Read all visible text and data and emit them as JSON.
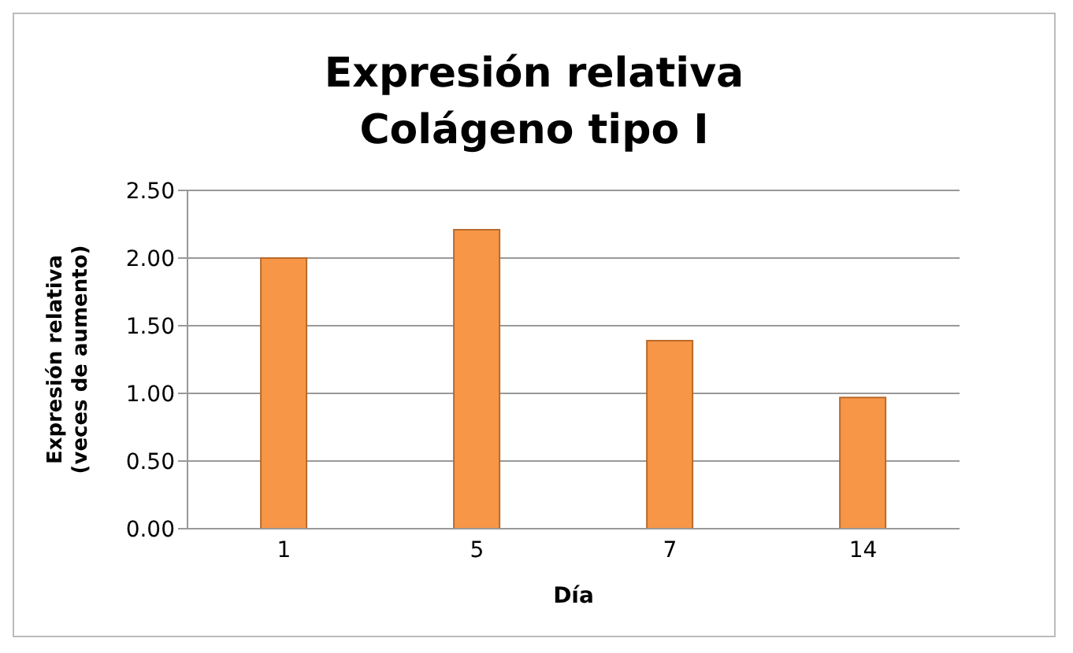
{
  "chart_data": {
    "type": "bar",
    "title": "Expresión relativa\nColágeno tipo I",
    "xlabel": "Día",
    "ylabel": "Expresión relativa\n(veces de aumento)",
    "categories": [
      "1",
      "5",
      "7",
      "14"
    ],
    "values": [
      2.0,
      2.21,
      1.39,
      0.97
    ],
    "color": "#f79646",
    "ylim": [
      0,
      2.5
    ],
    "yticks": [
      {
        "value": 0,
        "label": "0.00"
      },
      {
        "value": 0.5,
        "label": "0.50"
      },
      {
        "value": 1,
        "label": "1.00"
      },
      {
        "value": 1.5,
        "label": "1.50"
      },
      {
        "value": 2,
        "label": "2.00"
      },
      {
        "value": 2.5,
        "label": "2.50"
      }
    ],
    "grid": "y"
  }
}
